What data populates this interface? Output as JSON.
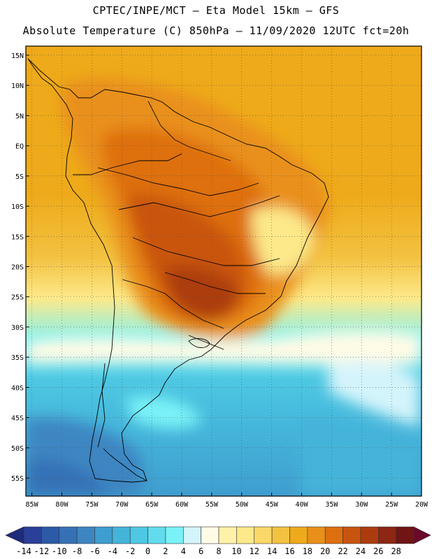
{
  "header": {
    "line1": "CPTEC/INPE/MCT –  Eta Model 15km – GFS",
    "line2": "Absolute Temperature (C) 850hPa – 11/09/2020 12UTC fct=20h"
  },
  "map": {
    "lat_ticks": [
      "15N",
      "10N",
      "5N",
      "EQ",
      "5S",
      "10S",
      "15S",
      "20S",
      "25S",
      "30S",
      "35S",
      "40S",
      "45S",
      "50S",
      "55S"
    ],
    "lat_values": [
      15,
      10,
      5,
      0,
      -5,
      -10,
      -15,
      -20,
      -25,
      -30,
      -35,
      -40,
      -45,
      -50,
      -55
    ],
    "lon_ticks": [
      "85W",
      "80W",
      "75W",
      "70W",
      "65W",
      "60W",
      "55W",
      "50W",
      "45W",
      "40W",
      "35W",
      "30W",
      "25W",
      "20W"
    ],
    "lon_values": [
      -85,
      -80,
      -75,
      -70,
      -65,
      -60,
      -55,
      -50,
      -45,
      -40,
      -35,
      -30,
      -25,
      -20
    ],
    "lat_range": [
      -58,
      16.5
    ],
    "lon_range": [
      -86,
      -20
    ]
  },
  "colorbar": {
    "labels": [
      "-14",
      "-12",
      "-10",
      "-8",
      "-6",
      "-4",
      "-2",
      "0",
      "2",
      "4",
      "6",
      "8",
      "10",
      "12",
      "14",
      "16",
      "18",
      "20",
      "22",
      "24",
      "26",
      "28"
    ],
    "colors": [
      "#2a3f98",
      "#2c5aa8",
      "#3671b6",
      "#3d86c2",
      "#3f9dcf",
      "#44b4da",
      "#4ec8e3",
      "#62dced",
      "#7af2f7",
      "#d4f4fb",
      "#fffbe5",
      "#fff2a8",
      "#fde98a",
      "#fad869",
      "#f3c241",
      "#eeaa1a",
      "#e9901a",
      "#de6f0f",
      "#c95410",
      "#ac3c0e",
      "#8d2612",
      "#701414"
    ],
    "end_low": "#1e2a7a",
    "end_high": "#6a0a2a"
  }
}
